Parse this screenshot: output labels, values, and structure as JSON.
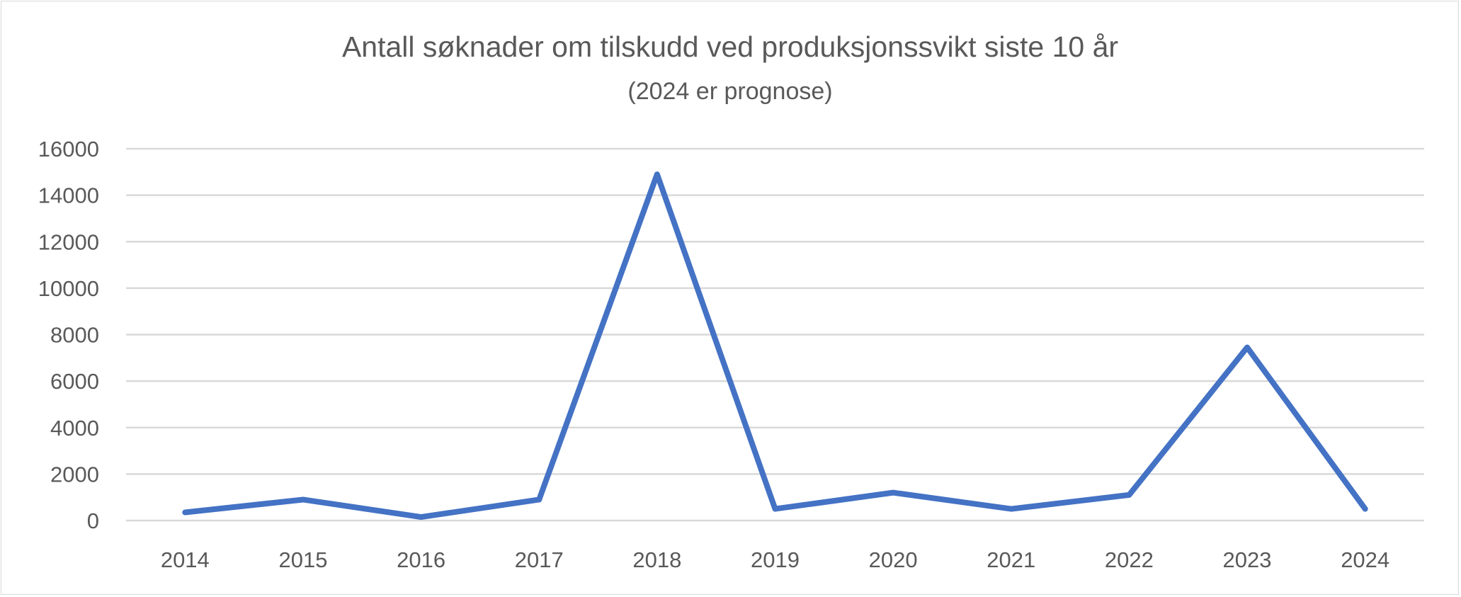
{
  "chart_data": {
    "type": "line",
    "title": "Antall søknader om tilskudd ved produksjonssvikt siste 10 år",
    "subtitle": "(2024 er prognose)",
    "xlabel": "",
    "ylabel": "",
    "categories": [
      "2014",
      "2015",
      "2016",
      "2017",
      "2018",
      "2019",
      "2020",
      "2021",
      "2022",
      "2023",
      "2024"
    ],
    "values": [
      350,
      900,
      150,
      900,
      14900,
      500,
      1200,
      500,
      1100,
      7450,
      500
    ],
    "ylim": [
      0,
      16000
    ],
    "yticks": [
      "0",
      "2000",
      "4000",
      "6000",
      "8000",
      "10000",
      "12000",
      "14000",
      "16000"
    ],
    "grid": true,
    "legend": "none",
    "series_color": "#4472C4",
    "grid_color": "#D9D9D9"
  }
}
